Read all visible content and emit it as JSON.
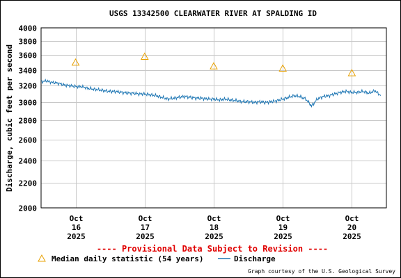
{
  "chart_data": {
    "type": "line",
    "title": "USGS 13342500 CLEARWATER RIVER AT SPALDING ID",
    "ylabel": "Discharge, cubic feet per second",
    "xlabel": "",
    "y_scale": "log",
    "ylim": [
      2000,
      4000
    ],
    "y_ticks": [
      2000,
      2200,
      2400,
      2600,
      2800,
      3000,
      3200,
      3400,
      3600,
      3800,
      4000
    ],
    "x_range": [
      "2025-10-15T12:00",
      "2025-10-20T12:00"
    ],
    "x_tick_labels": [
      {
        "date": "2025-10-16T00:00",
        "month": "Oct",
        "day": "16",
        "year": "2025"
      },
      {
        "date": "2025-10-17T00:00",
        "month": "Oct",
        "day": "17",
        "year": "2025"
      },
      {
        "date": "2025-10-18T00:00",
        "month": "Oct",
        "day": "18",
        "year": "2025"
      },
      {
        "date": "2025-10-19T00:00",
        "month": "Oct",
        "day": "19",
        "year": "2025"
      },
      {
        "date": "2025-10-20T00:00",
        "month": "Oct",
        "day": "20",
        "year": "2025"
      }
    ],
    "grid": true,
    "series": [
      {
        "name": "Discharge",
        "color": "#1f77b4",
        "points": [
          [
            "2025-10-15T12:00",
            3250
          ],
          [
            "2025-10-15T14:00",
            3260
          ],
          [
            "2025-10-15T16:00",
            3240
          ],
          [
            "2025-10-15T18:00",
            3230
          ],
          [
            "2025-10-15T20:00",
            3210
          ],
          [
            "2025-10-15T22:00",
            3200
          ],
          [
            "2025-10-16T00:00",
            3190
          ],
          [
            "2025-10-16T02:00",
            3190
          ],
          [
            "2025-10-16T04:00",
            3170
          ],
          [
            "2025-10-16T06:00",
            3160
          ],
          [
            "2025-10-16T08:00",
            3150
          ],
          [
            "2025-10-16T10:00",
            3140
          ],
          [
            "2025-10-16T12:00",
            3130
          ],
          [
            "2025-10-16T14:00",
            3130
          ],
          [
            "2025-10-16T16:00",
            3120
          ],
          [
            "2025-10-16T18:00",
            3110
          ],
          [
            "2025-10-16T20:00",
            3110
          ],
          [
            "2025-10-16T22:00",
            3100
          ],
          [
            "2025-10-17T00:00",
            3100
          ],
          [
            "2025-10-17T02:00",
            3090
          ],
          [
            "2025-10-17T04:00",
            3080
          ],
          [
            "2025-10-17T06:00",
            3060
          ],
          [
            "2025-10-17T08:00",
            3040
          ],
          [
            "2025-10-17T10:00",
            3050
          ],
          [
            "2025-10-17T12:00",
            3060
          ],
          [
            "2025-10-17T14:00",
            3070
          ],
          [
            "2025-10-17T16:00",
            3060
          ],
          [
            "2025-10-17T18:00",
            3050
          ],
          [
            "2025-10-17T20:00",
            3050
          ],
          [
            "2025-10-17T22:00",
            3040
          ],
          [
            "2025-10-18T00:00",
            3040
          ],
          [
            "2025-10-18T02:00",
            3030
          ],
          [
            "2025-10-18T04:00",
            3040
          ],
          [
            "2025-10-18T06:00",
            3030
          ],
          [
            "2025-10-18T08:00",
            3020
          ],
          [
            "2025-10-18T10:00",
            3010
          ],
          [
            "2025-10-18T12:00",
            3010
          ],
          [
            "2025-10-18T14:00",
            3000
          ],
          [
            "2025-10-18T16:00",
            3010
          ],
          [
            "2025-10-18T18:00",
            3000
          ],
          [
            "2025-10-18T20:00",
            3010
          ],
          [
            "2025-10-18T22:00",
            3020
          ],
          [
            "2025-10-19T00:00",
            3040
          ],
          [
            "2025-10-19T02:00",
            3060
          ],
          [
            "2025-10-19T04:00",
            3080
          ],
          [
            "2025-10-19T06:00",
            3070
          ],
          [
            "2025-10-19T08:00",
            3040
          ],
          [
            "2025-10-19T10:00",
            2960
          ],
          [
            "2025-10-19T12:00",
            3040
          ],
          [
            "2025-10-19T14:00",
            3070
          ],
          [
            "2025-10-19T16:00",
            3080
          ],
          [
            "2025-10-19T18:00",
            3100
          ],
          [
            "2025-10-19T20:00",
            3120
          ],
          [
            "2025-10-19T22:00",
            3130
          ],
          [
            "2025-10-20T00:00",
            3120
          ],
          [
            "2025-10-20T02:00",
            3120
          ],
          [
            "2025-10-20T04:00",
            3130
          ],
          [
            "2025-10-20T06:00",
            3110
          ],
          [
            "2025-10-20T08:00",
            3140
          ],
          [
            "2025-10-20T10:00",
            3080
          ]
        ]
      },
      {
        "name": "Median daily statistic (54 years)",
        "marker": "triangle",
        "color": "#e8a000",
        "points": [
          [
            "2025-10-16T00:00",
            3500
          ],
          [
            "2025-10-17T00:00",
            3580
          ],
          [
            "2025-10-18T00:00",
            3450
          ],
          [
            "2025-10-19T00:00",
            3420
          ],
          [
            "2025-10-20T00:00",
            3360
          ]
        ]
      }
    ],
    "annotation": "---- Provisional Data Subject to Revision ----",
    "legend": {
      "placement": "bottom",
      "median_label": "Median daily statistic (54 years)",
      "discharge_label": "Discharge"
    },
    "credit": "Graph courtesy of the U.S. Geological Survey"
  }
}
